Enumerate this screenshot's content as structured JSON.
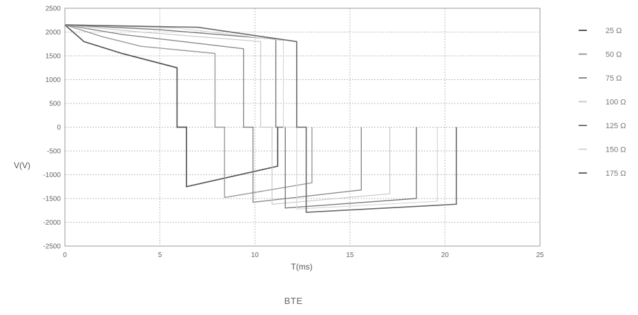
{
  "chart_data": {
    "type": "line",
    "title": "",
    "caption": "BTE",
    "xlabel": "T(ms)",
    "ylabel": "V(V)",
    "xlim": [
      0,
      25
    ],
    "ylim": [
      -2500,
      2500
    ],
    "xticks": [
      0,
      5,
      10,
      15,
      20,
      25
    ],
    "yticks": [
      2500,
      2000,
      1500,
      1000,
      500,
      0,
      -500,
      -1000,
      -1500,
      -2000,
      -2500
    ],
    "grid": true,
    "legend_position": "right",
    "series": [
      {
        "name": "25 Ω",
        "color": "#555555",
        "width": 1.7,
        "x": [
          0,
          1,
          3,
          5.9,
          5.9,
          6.4,
          6.4,
          11.2,
          11.2
        ],
        "y": [
          2150,
          1800,
          1550,
          1250,
          0,
          0,
          -1250,
          -820,
          0
        ]
      },
      {
        "name": "50 Ω",
        "color": "#999999",
        "width": 1.4,
        "x": [
          0,
          2,
          4,
          7.9,
          7.9,
          8.4,
          8.4,
          13.0,
          13.0
        ],
        "y": [
          2150,
          1900,
          1700,
          1550,
          0,
          0,
          -1480,
          -1170,
          0
        ]
      },
      {
        "name": "75 Ω",
        "color": "#888888",
        "width": 1.4,
        "x": [
          0,
          3,
          9.4,
          9.4,
          9.9,
          9.9,
          15.6,
          15.6
        ],
        "y": [
          2150,
          1950,
          1650,
          0,
          0,
          -1580,
          -1320,
          0
        ]
      },
      {
        "name": "100 Ω",
        "color": "#c8c8c8",
        "width": 1.2,
        "x": [
          0,
          4,
          10.3,
          10.3,
          10.9,
          10.9,
          17.1,
          17.1
        ],
        "y": [
          2150,
          2000,
          1800,
          0,
          0,
          -1620,
          -1400,
          0
        ]
      },
      {
        "name": "125 Ω",
        "color": "#777777",
        "width": 1.4,
        "x": [
          0,
          5,
          11.1,
          11.1,
          11.6,
          11.6,
          18.5,
          18.5
        ],
        "y": [
          2150,
          2050,
          1850,
          0,
          0,
          -1700,
          -1500,
          0
        ]
      },
      {
        "name": "150 Ω",
        "color": "#d6d6d6",
        "width": 1.2,
        "x": [
          0,
          6,
          11.5,
          11.5,
          12.2,
          12.2,
          19.6,
          19.6
        ],
        "y": [
          2150,
          2080,
          1820,
          0,
          0,
          -1720,
          -1560,
          0
        ]
      },
      {
        "name": "175 Ω",
        "color": "#666666",
        "width": 1.6,
        "x": [
          0,
          7,
          12.2,
          12.2,
          12.7,
          12.7,
          20.6,
          20.6
        ],
        "y": [
          2150,
          2100,
          1800,
          0,
          0,
          -1790,
          -1620,
          0
        ]
      }
    ]
  }
}
